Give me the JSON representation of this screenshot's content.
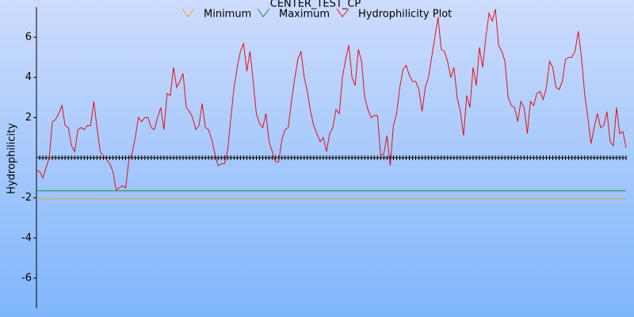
{
  "chart_data": {
    "type": "line",
    "title": "CENTER_TEST_CP",
    "y_label": "Hydrophilicity",
    "ylim": [
      -7.5,
      7.5
    ],
    "yticks": [
      -6,
      -4,
      -2,
      2,
      4,
      6
    ],
    "legend": "top",
    "series": [
      {
        "name": "Minimum",
        "color": "#e8a030",
        "values": [
          -2.05,
          -2.05,
          -2.05,
          -2.05,
          -2.05,
          -2.05,
          -2.05,
          -2.05,
          -2.05,
          -2.05,
          -2.05,
          -2.05,
          -2.05,
          -2.05,
          -2.05,
          -2.05,
          -2.05,
          -2.05,
          -2.05,
          -2.05,
          -2.05,
          -2.05,
          -2.05,
          -2.05,
          -2.05,
          -2.05,
          -2.05,
          -2.05,
          -2.05,
          -2.05,
          -2.05,
          -2.05,
          -2.05,
          -2.05,
          -2.05,
          -2.05,
          -2.05,
          -2.05,
          -2.05,
          -2.05,
          -2.05,
          -2.05,
          -2.05,
          -2.05,
          -2.05,
          -2.05,
          -2.05,
          -2.05,
          -2.05,
          -2.05,
          -2.05,
          -2.05,
          -2.05,
          -2.05,
          -2.05,
          -2.05,
          -2.05,
          -2.05,
          -2.05,
          -2.05,
          -2.05,
          -2.05,
          -2.05,
          -2.05,
          -2.05,
          -2.05,
          -2.05,
          -2.05,
          -2.05,
          -2.05,
          -2.05,
          -2.05,
          -2.05,
          -2.05,
          -2.05,
          -2.05,
          -2.05,
          -2.05,
          -2.05,
          -2.05,
          -2.05,
          -2.05,
          -2.05,
          -2.05,
          -2.05,
          -2.05,
          -2.05,
          -2.05,
          -2.05,
          -2.05,
          -2.05,
          -2.05,
          -2.05,
          -2.05,
          -2.05,
          -2.05,
          -2.05,
          -2.05,
          -2.05,
          -2.05,
          -2.05,
          -2.05,
          -2.05,
          -2.05,
          -2.05,
          -2.05,
          -2.05,
          -2.05,
          -2.05,
          -2.05,
          -2.05,
          -2.05,
          -2.05,
          -2.05,
          -2.05,
          -2.05,
          -2.05,
          -2.05,
          -2.05,
          -2.05,
          -2.05,
          -2.05,
          -2.05,
          -2.05,
          -2.05,
          -2.05,
          -2.05,
          -2.05,
          -2.05,
          -2.05,
          -2.05,
          -2.05,
          -2.05,
          -2.05,
          -2.05,
          -2.05,
          -2.05,
          -2.05,
          -2.05,
          -2.05,
          -2.05,
          -2.05,
          -2.05,
          -2.05,
          -2.05,
          -2.05,
          -2.05,
          -2.05,
          -2.05,
          -2.05,
          -2.05,
          -2.05,
          -2.05,
          -2.05,
          -2.05,
          -2.05,
          -2.05,
          -2.05,
          -2.05,
          -2.05,
          -2.05,
          -2.05,
          -2.05,
          -2.05,
          -2.05,
          -2.05,
          -2.05,
          -2.05,
          -2.05,
          -2.05,
          -2.05,
          -2.05,
          -2.05,
          -2.05,
          -2.05,
          -2.05,
          -2.05,
          -2.05,
          -2.05,
          -2.05,
          -2.05,
          -2.05,
          -2.05,
          -2.05,
          -2.05,
          -2.05
        ]
      },
      {
        "name": "Maximum",
        "color": "#1f8a3a",
        "values": [
          -1.65,
          -1.65,
          -1.65,
          -1.65,
          -1.65,
          -1.65,
          -1.65,
          -1.65,
          -1.65,
          -1.65,
          -1.65,
          -1.65,
          -1.65,
          -1.65,
          -1.65,
          -1.65,
          -1.65,
          -1.65,
          -1.65,
          -1.65,
          -1.65,
          -1.65,
          -1.65,
          -1.65,
          -1.65,
          -1.65,
          -1.65,
          -1.65,
          -1.65,
          -1.65,
          -1.65,
          -1.65,
          -1.65,
          -1.65,
          -1.65,
          -1.65,
          -1.65,
          -1.65,
          -1.65,
          -1.65,
          -1.65,
          -1.65,
          -1.65,
          -1.65,
          -1.65,
          -1.65,
          -1.65,
          -1.65,
          -1.65,
          -1.65,
          -1.65,
          -1.65,
          -1.65,
          -1.65,
          -1.65,
          -1.65,
          -1.65,
          -1.65,
          -1.65,
          -1.65,
          -1.65,
          -1.65,
          -1.65,
          -1.65,
          -1.65,
          -1.65,
          -1.65,
          -1.65,
          -1.65,
          -1.65,
          -1.65,
          -1.65,
          -1.65,
          -1.65,
          -1.65,
          -1.65,
          -1.65,
          -1.65,
          -1.65,
          -1.65,
          -1.65,
          -1.65,
          -1.65,
          -1.65,
          -1.65,
          -1.65,
          -1.65,
          -1.65,
          -1.65,
          -1.65,
          -1.65,
          -1.65,
          -1.65,
          -1.65,
          -1.65,
          -1.65,
          -1.65,
          -1.65,
          -1.65,
          -1.65,
          -1.65,
          -1.65,
          -1.65,
          -1.65,
          -1.65,
          -1.65,
          -1.65,
          -1.65,
          -1.65,
          -1.65,
          -1.65,
          -1.65,
          -1.65,
          -1.65,
          -1.65,
          -1.65,
          -1.65,
          -1.65,
          -1.65,
          -1.65,
          -1.65,
          -1.65,
          -1.65,
          -1.65,
          -1.65,
          -1.65,
          -1.65,
          -1.65,
          -1.65,
          -1.65,
          -1.65,
          -1.65,
          -1.65,
          -1.65,
          -1.65,
          -1.65,
          -1.65,
          -1.65,
          -1.65,
          -1.65,
          -1.65,
          -1.65,
          -1.65,
          -1.65,
          -1.65,
          -1.65,
          -1.65,
          -1.65,
          -1.65,
          -1.65,
          -1.65,
          -1.65,
          -1.65,
          -1.65,
          -1.65,
          -1.65,
          -1.65,
          -1.65,
          -1.65,
          -1.65,
          -1.65,
          -1.65,
          -1.65,
          -1.65,
          -1.65,
          -1.65,
          -1.65,
          -1.65,
          -1.65,
          -1.65,
          -1.65,
          -1.65,
          -1.65,
          -1.65,
          -1.65,
          -1.65,
          -1.65,
          -1.65,
          -1.65,
          -1.65,
          -1.65,
          -1.65,
          -1.65,
          -1.65,
          -1.65,
          -1.65
        ]
      },
      {
        "name": "Hydrophilicity Plot",
        "color": "#e0101c",
        "values": [
          -0.6,
          -0.7,
          -1.0,
          -0.5,
          0,
          1.8,
          1.9,
          2.2,
          2.6,
          1.6,
          1.5,
          0.6,
          0.3,
          1.4,
          1.5,
          1.4,
          1.6,
          1.6,
          2.8,
          1.5,
          0.3,
          0.1,
          -0.1,
          -0.3,
          -0.7,
          -1.6,
          -1.5,
          -1.4,
          -1.5,
          -0.1,
          0.2,
          1.0,
          2.0,
          1.8,
          2.0,
          2.0,
          1.5,
          1.4,
          2.0,
          2.5,
          1.4,
          3.2,
          3.1,
          4.5,
          3.5,
          3.8,
          4.2,
          2.5,
          2.3,
          2.0,
          1.4,
          1.6,
          2.7,
          1.5,
          1.4,
          0.9,
          0.2,
          -0.4,
          -0.3,
          -0.3,
          0.4,
          2.0,
          3.5,
          4.5,
          5.3,
          5.7,
          4.3,
          5.3,
          3.8,
          2.2,
          1.7,
          1.5,
          2.2,
          0.8,
          0.3,
          -0.2,
          -0.2,
          0.9,
          1.4,
          1.5,
          2.8,
          3.9,
          4.9,
          5.3,
          4.0,
          3.3,
          2.3,
          1.6,
          1.2,
          0.8,
          1.0,
          0.3,
          1.2,
          1.5,
          2.4,
          2.2,
          4.0,
          4.9,
          5.6,
          4.0,
          3.6,
          5.4,
          4.8,
          3.0,
          2.4,
          2.0,
          2.1,
          2.1,
          0.1,
          0.2,
          1.1,
          -0.4,
          1.6,
          2.2,
          3.5,
          4.4,
          4.6,
          4.1,
          3.8,
          3.8,
          3.4,
          2.3,
          3.5,
          4.0,
          5.0,
          6.0,
          7.0,
          5.4,
          5.3,
          4.8,
          4.0,
          4.5,
          3.0,
          2.3,
          1.1,
          3.1,
          2.5,
          4.5,
          3.6,
          5.5,
          4.5,
          6.0,
          7.2,
          6.8,
          7.4,
          5.6,
          5.3,
          4.8,
          3.0,
          2.6,
          2.5,
          1.8,
          2.8,
          2.5,
          1.2,
          2.8,
          2.6,
          3.2,
          3.3,
          2.9,
          3.5,
          4.8,
          4.5,
          3.5,
          3.4,
          3.8,
          4.9,
          5.0,
          5.0,
          5.3,
          6.3,
          5.0,
          3.2,
          2.0,
          0.7,
          1.5,
          2.2,
          1.5,
          1.6,
          2.3,
          0.8,
          0.6,
          2.5,
          1.2,
          1.3,
          0.5
        ]
      }
    ]
  }
}
